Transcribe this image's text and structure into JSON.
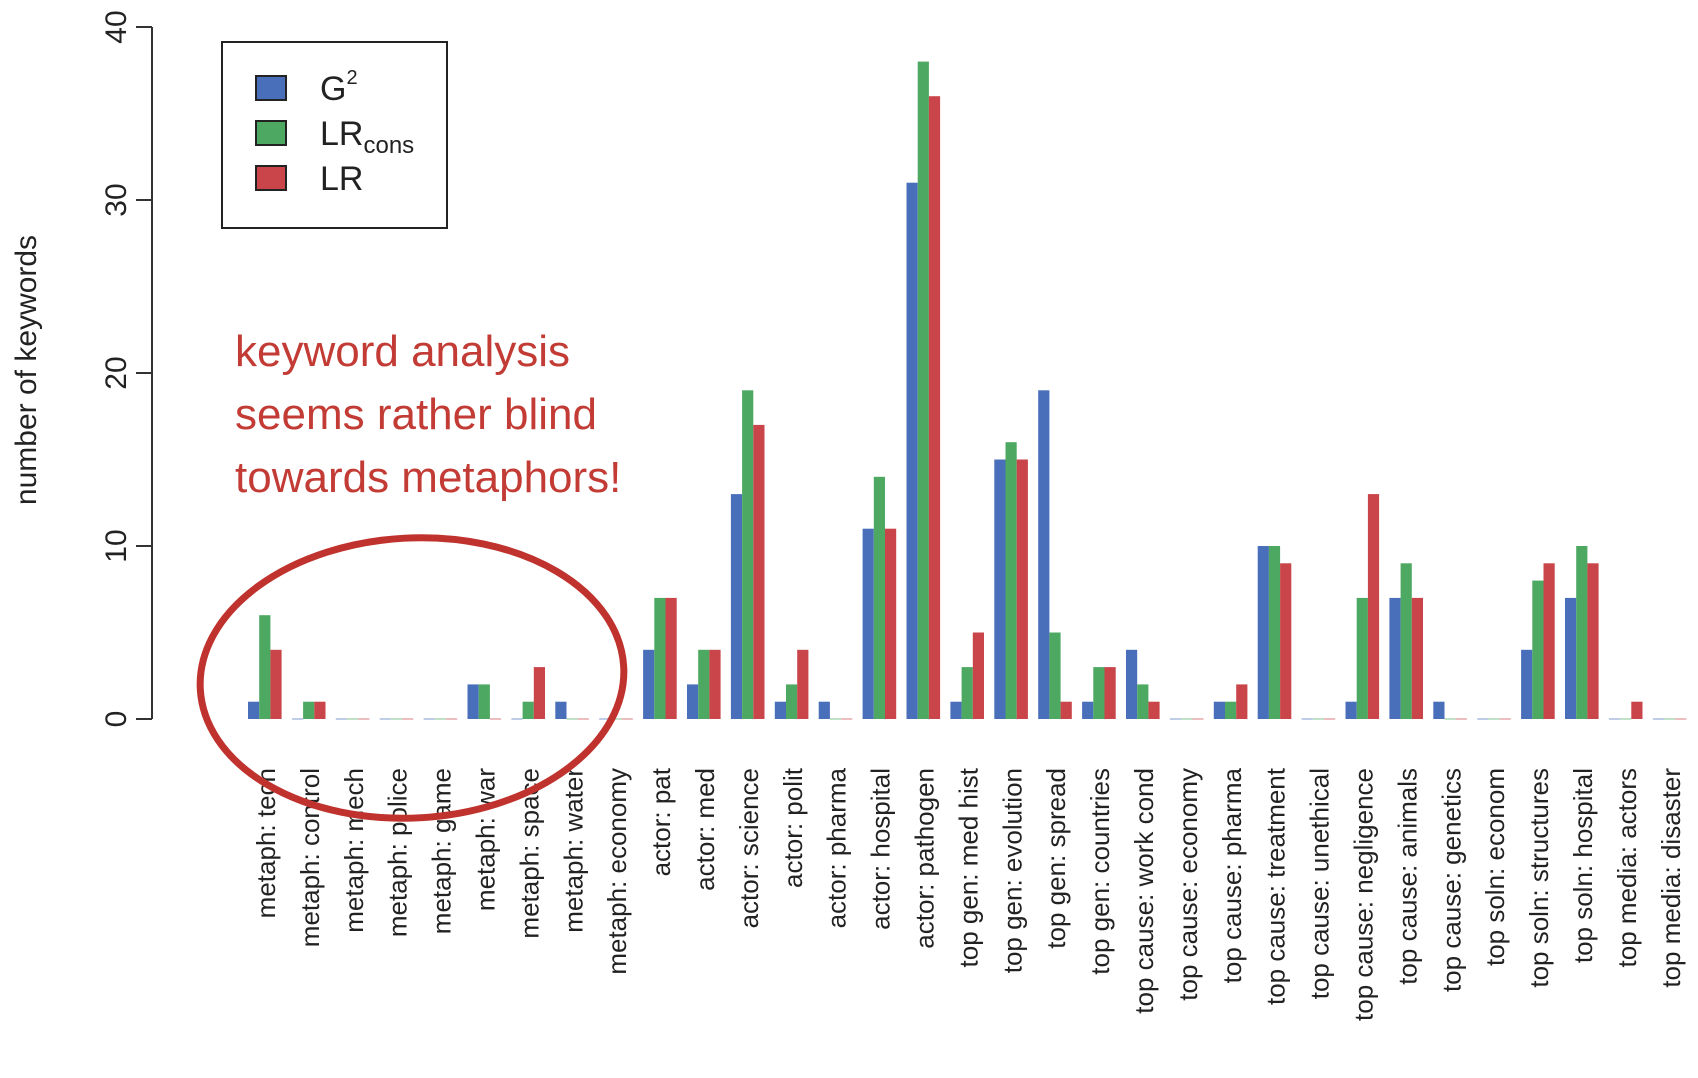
{
  "chart_data": {
    "type": "bar",
    "title": "",
    "xlabel": "",
    "ylabel": "number of keywords",
    "ylim": [
      0,
      40
    ],
    "yticks": [
      0,
      10,
      20,
      30,
      40
    ],
    "grid": false,
    "legend_position": "top-left",
    "categories": [
      "metaph: tech",
      "metaph: control",
      "metaph: mech",
      "metaph: police",
      "metaph: game",
      "metaph: war",
      "metaph: space",
      "metaph: water",
      "metaph: economy",
      "actor: pat",
      "actor: med",
      "actor: science",
      "actor: polit",
      "actor: pharma",
      "actor: hospital",
      "actor: pathogen",
      "top gen: med hist",
      "top gen: evolution",
      "top gen: spread",
      "top gen: countries",
      "top cause: work cond",
      "top cause: economy",
      "top cause: pharma",
      "top cause: treatment",
      "top cause: unethical",
      "top cause: negligence",
      "top cause: animals",
      "top cause: genetics",
      "top soln: econom",
      "top soln: structures",
      "top soln: hospital",
      "top media: actors",
      "top media: disaster"
    ],
    "series": [
      {
        "name": "G",
        "sup": "2",
        "sub": "",
        "color": "#4a6fba",
        "values": [
          1,
          0,
          0,
          0,
          0,
          2,
          0,
          1,
          0,
          4,
          2,
          13,
          1,
          1,
          11,
          31,
          1,
          15,
          19,
          1,
          4,
          0,
          1,
          10,
          0,
          1,
          7,
          1,
          0,
          4,
          7,
          0,
          0
        ]
      },
      {
        "name": "LR",
        "sup": "",
        "sub": "cons",
        "color": "#4da862",
        "values": [
          6,
          1,
          0,
          0,
          0,
          2,
          1,
          0,
          0,
          7,
          4,
          19,
          2,
          0,
          14,
          38,
          3,
          16,
          5,
          3,
          2,
          0,
          1,
          10,
          0,
          7,
          9,
          0,
          0,
          8,
          10,
          0,
          0
        ]
      },
      {
        "name": "LR",
        "sup": "",
        "sub": "",
        "color": "#c9454a",
        "values": [
          4,
          1,
          0,
          0,
          0,
          0,
          3,
          0,
          0,
          7,
          4,
          17,
          4,
          0,
          11,
          36,
          5,
          15,
          1,
          3,
          1,
          0,
          2,
          9,
          0,
          13,
          7,
          0,
          0,
          9,
          9,
          1,
          0
        ]
      }
    ],
    "annotation": {
      "lines": [
        "keyword analysis",
        "seems rather blind",
        "towards metaphors!"
      ],
      "color": "#c33b35"
    }
  }
}
